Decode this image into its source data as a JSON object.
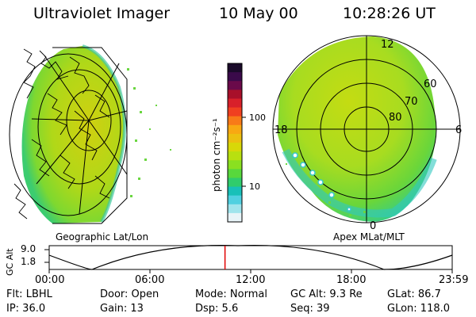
{
  "header": {
    "instrument": "Ultraviolet Imager",
    "date": "10 May 00",
    "time": "10:28:26 UT"
  },
  "colorbar": {
    "label": "photon cm⁻²s⁻¹",
    "ticks": [
      "100",
      "10"
    ],
    "colors": [
      "#1a0a2a",
      "#3a0a4a",
      "#6a0a4a",
      "#a8102a",
      "#d8202a",
      "#f04020",
      "#f87a18",
      "#f8a812",
      "#ecc010",
      "#d8d808",
      "#b8e010",
      "#8ae020",
      "#58d83c",
      "#30cc6c",
      "#18c0b8",
      "#50d0e0",
      "#a0e4ec",
      "#e8f4f8"
    ]
  },
  "left_panel": {
    "caption": "Geographic Lat/Lon"
  },
  "right_panel": {
    "caption": "Apex MLat/MLT",
    "mlt_labels": {
      "top": "12",
      "left": "18",
      "right": "6",
      "bottom": "0"
    },
    "lat_labels": [
      "60",
      "70",
      "80"
    ]
  },
  "timeline": {
    "axis_label": "GC Alt",
    "y_ticks": [
      "9.0",
      "1.8"
    ],
    "x_ticks": [
      "00:00",
      "06:00",
      "12:00",
      "18:00",
      "23:59"
    ],
    "current_time_hours": 10.47
  },
  "info": {
    "row1": {
      "flt": "Flt: LBHL",
      "door": "Door: Open",
      "mode": "Mode: Normal",
      "gcalt": "GC Alt: 9.3 Re",
      "glat": "GLat:  86.7"
    },
    "row2": {
      "ip": "IP: 36.0",
      "gain": "Gain: 13",
      "dsp": "Dsp:    5.6",
      "seq": "Seq: 39",
      "glon": "GLon: 118.0"
    }
  }
}
